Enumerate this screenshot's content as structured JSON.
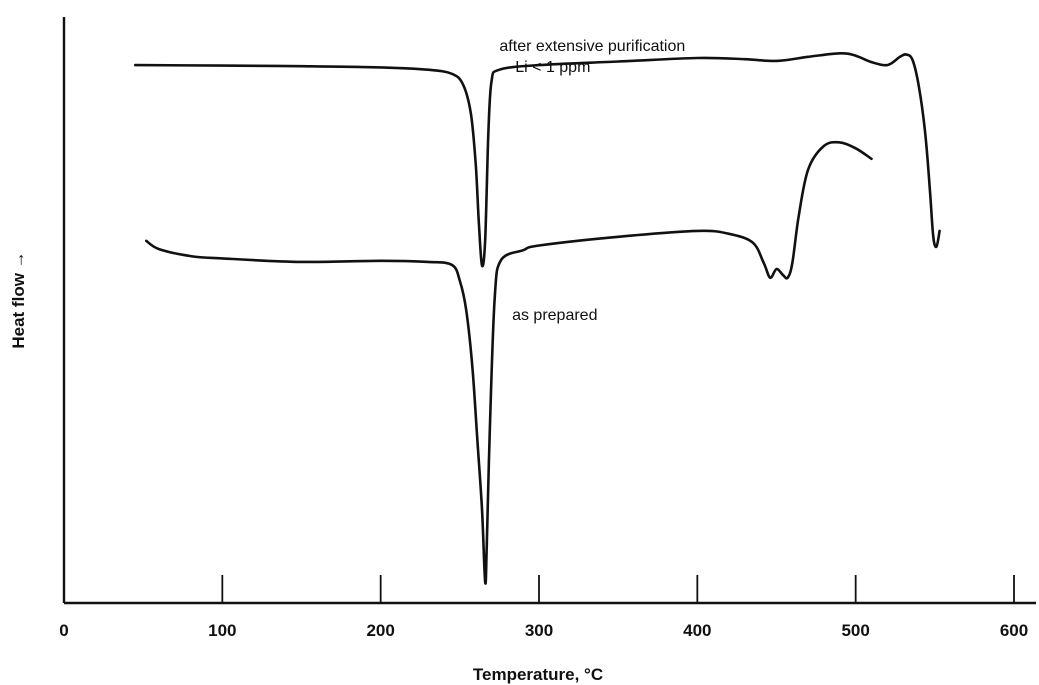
{
  "chart_data": {
    "type": "line",
    "xlabel": "Temperature, °C",
    "ylabel": "Heat flow →",
    "xlim": [
      0,
      600
    ],
    "ylim": [
      0,
      100
    ],
    "x_ticks": [
      "0",
      "100",
      "200",
      "300",
      "400",
      "500",
      "600"
    ],
    "y_ticks_shown": false,
    "grid": false,
    "legend": "none",
    "annotations": [
      {
        "text": "after extensive purification",
        "x": 275,
        "y": 94.2
      },
      {
        "text": "Li < 1 ppm",
        "x": 285,
        "y": 90.6
      },
      {
        "text": "as prepared",
        "x": 283,
        "y": 48.3
      }
    ],
    "series": [
      {
        "x": [
          45,
          100,
          150,
          200,
          230,
          245,
          252,
          257,
          260,
          262,
          264,
          266,
          268,
          270,
          275,
          300,
          350,
          400,
          430,
          450,
          470,
          490,
          500,
          510,
          520,
          528,
          532,
          536,
          540,
          544,
          547,
          549,
          551,
          553
        ],
        "y": [
          91.8,
          91.7,
          91.6,
          91.4,
          91.0,
          90.3,
          88.5,
          83.5,
          75,
          65,
          57.6,
          62,
          80,
          89,
          91.0,
          91.8,
          92.4,
          93.0,
          92.8,
          92.5,
          93.2,
          93.8,
          93.4,
          92.3,
          91.8,
          93.2,
          93.6,
          92.6,
          88.0,
          80.0,
          70.0,
          62.5,
          60.8,
          63.5
        ]
      },
      {
        "x": [
          52,
          60,
          80,
          100,
          150,
          200,
          230,
          245,
          250,
          254,
          258,
          261,
          264,
          266,
          267,
          269,
          272,
          276,
          290,
          300,
          350,
          400,
          420,
          435,
          442,
          446,
          450,
          454,
          457,
          460,
          464,
          470,
          480,
          490,
          500,
          510
        ],
        "y": [
          61.8,
          60.4,
          59.2,
          58.8,
          58.2,
          58.4,
          58.2,
          57.7,
          55,
          50,
          40,
          28,
          16,
          3.5,
          10,
          30,
          52,
          58.5,
          60.2,
          61.0,
          62.5,
          63.5,
          63.0,
          61.5,
          58.0,
          55.5,
          57.0,
          56.0,
          55.5,
          58.0,
          66.0,
          74.0,
          78.0,
          78.6,
          77.6,
          75.8
        ]
      }
    ]
  }
}
